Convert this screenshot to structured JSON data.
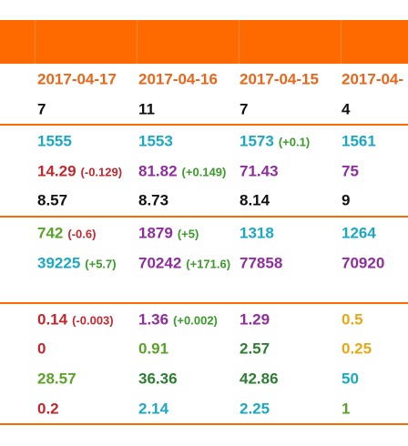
{
  "groups": [
    [
      [
        {
          "text": "2017-04-17",
          "color": "#e8671a"
        },
        {
          "text": "2017-04-16",
          "color": "#e8671a"
        },
        {
          "text": "2017-04-15",
          "color": "#e8671a"
        },
        {
          "text": "2017-04-",
          "color": "#e8671a"
        }
      ],
      [
        {
          "text": "7",
          "color": "#111111"
        },
        {
          "text": "11",
          "color": "#111111"
        },
        {
          "text": "7",
          "color": "#111111"
        },
        {
          "text": "4",
          "color": "#111111"
        }
      ]
    ],
    [
      [
        {
          "text": "1555",
          "color": "#1ba8c0"
        },
        {
          "text": "1553",
          "color": "#1ba8c0"
        },
        {
          "text": "1573",
          "color": "#1ba8c0",
          "delta": "(+0.1)",
          "delta_color": "#3a9a2a"
        },
        {
          "text": "1561",
          "color": "#1ba8c0"
        }
      ],
      [
        {
          "text": "14.29",
          "color": "#c0282e",
          "delta": "(-0.129)",
          "delta_color": "#c0282e"
        },
        {
          "text": "81.82",
          "color": "#8e2e9c",
          "delta": "(+0.149)",
          "delta_color": "#3a9a2a"
        },
        {
          "text": "71.43",
          "color": "#8e2e9c"
        },
        {
          "text": "75",
          "color": "#8e2e9c"
        }
      ],
      [
        {
          "text": "8.57",
          "color": "#111111"
        },
        {
          "text": "8.73",
          "color": "#111111"
        },
        {
          "text": "8.14",
          "color": "#111111"
        },
        {
          "text": "9",
          "color": "#111111"
        }
      ]
    ],
    [
      [
        {
          "text": "742",
          "color": "#5aa22a",
          "delta": "(-0.6)",
          "delta_color": "#c0282e"
        },
        {
          "text": "1879",
          "color": "#8e2e9c",
          "delta": "(+5)",
          "delta_color": "#3a9a2a"
        },
        {
          "text": "1318",
          "color": "#1ba8c0"
        },
        {
          "text": "1264",
          "color": "#1ba8c0"
        }
      ],
      [
        {
          "text": "39225",
          "color": "#1ba8c0",
          "delta": "(+5.7)",
          "delta_color": "#3a9a2a"
        },
        {
          "text": "70242",
          "color": "#8e2e9c",
          "delta": "(+171.6)",
          "delta_color": "#3a9a2a"
        },
        {
          "text": "77858",
          "color": "#8e2e9c"
        },
        {
          "text": "70920",
          "color": "#8e2e9c"
        }
      ]
    ],
    [
      [
        {
          "text": "0.14",
          "color": "#c0282e",
          "delta": "(-0.003)",
          "delta_color": "#c0282e"
        },
        {
          "text": "1.36",
          "color": "#8e2e9c",
          "delta": "(+0.002)",
          "delta_color": "#3a9a2a"
        },
        {
          "text": "1.29",
          "color": "#8e2e9c"
        },
        {
          "text": "0.5",
          "color": "#e6a817"
        }
      ],
      [
        {
          "text": "0",
          "color": "#c0282e"
        },
        {
          "text": "0.91",
          "color": "#5aa22a"
        },
        {
          "text": "2.57",
          "color": "#2e7d32"
        },
        {
          "text": "0.25",
          "color": "#e6a817"
        }
      ],
      [
        {
          "text": "28.57",
          "color": "#5aa22a"
        },
        {
          "text": "36.36",
          "color": "#2e7d32"
        },
        {
          "text": "42.86",
          "color": "#2e7d32"
        },
        {
          "text": "50",
          "color": "#1ba8c0"
        }
      ],
      [
        {
          "text": "0.2",
          "color": "#c0282e"
        },
        {
          "text": "2.14",
          "color": "#1ba8c0"
        },
        {
          "text": "2.25",
          "color": "#1ba8c0"
        },
        {
          "text": "1",
          "color": "#5aa22a"
        }
      ]
    ]
  ]
}
